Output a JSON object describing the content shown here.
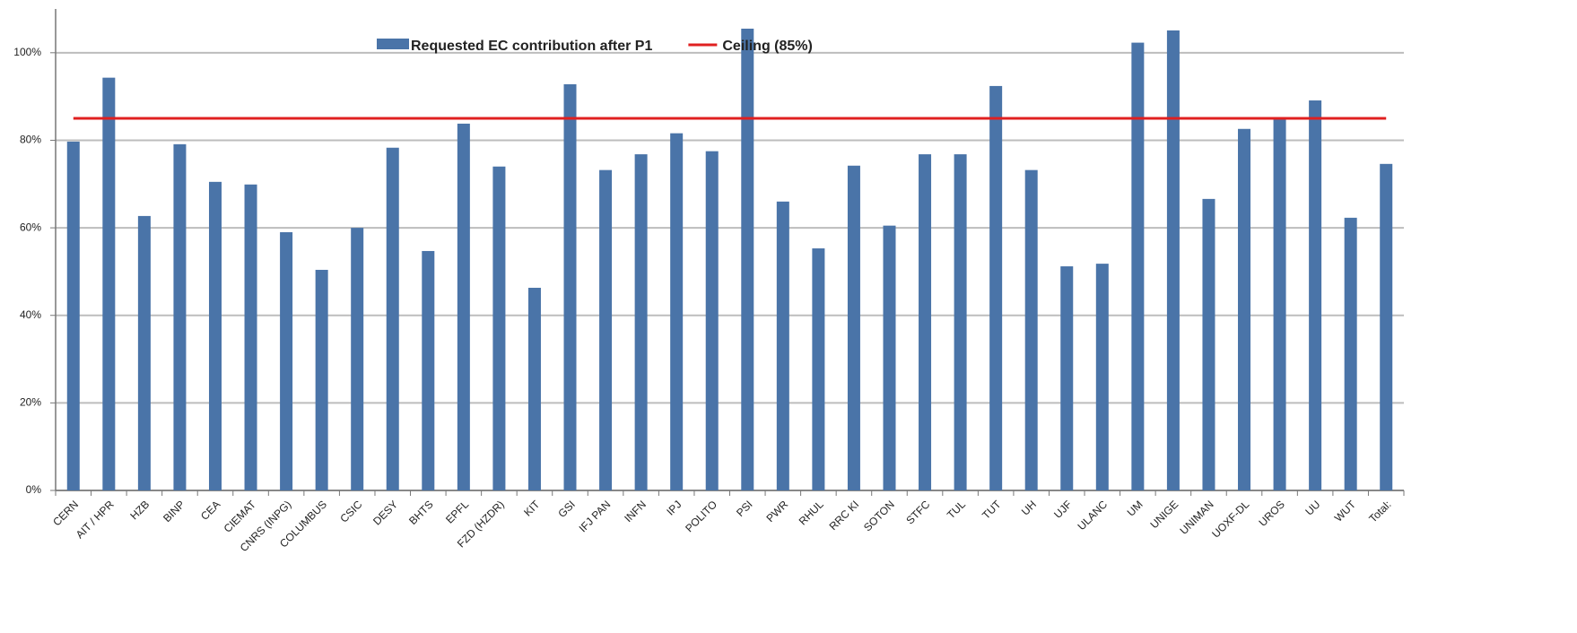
{
  "chart_data": {
    "type": "bar",
    "categories": [
      "CERN",
      "AIT / HPR",
      "HZB",
      "BINP",
      "CEA",
      "CIEMAT",
      "CNRS (INPG)",
      "COLUMBUS",
      "CSIC",
      "DESY",
      "BHTS",
      "EPFL",
      "FZD (HZDR)",
      "KIT",
      "GSI",
      "IFJ PAN",
      "INFN",
      "IPJ",
      "POLITO",
      "PSI",
      "PWR",
      "RHUL",
      "RRC KI",
      "SOTON",
      "STFC",
      "TUL",
      "TUT",
      "UH",
      "UJF",
      "ULANC",
      "UM",
      "UNIGE",
      "UNIMAN",
      "UOXF-DL",
      "UROS",
      "UU",
      "WUT",
      "Total:"
    ],
    "series": [
      {
        "name": "Requested EC contribution after P1",
        "color": "#4a74a8",
        "type": "bar",
        "values": [
          79.7,
          94.3,
          62.7,
          79.1,
          70.5,
          69.9,
          59,
          50.4,
          60,
          78.3,
          54.7,
          83.8,
          74,
          46.3,
          92.8,
          73.2,
          76.8,
          81.6,
          77.5,
          105.5,
          66,
          55.3,
          74.2,
          60.5,
          76.8,
          76.8,
          92.4,
          73.2,
          51.2,
          51.8,
          102.3,
          105.1,
          66.6,
          82.6,
          85.2,
          89.1,
          62.3,
          74.6
        ]
      },
      {
        "name": "Ceiling (85%)",
        "color": "#e02020",
        "type": "line",
        "values": [
          85,
          85,
          85,
          85,
          85,
          85,
          85,
          85,
          85,
          85,
          85,
          85,
          85,
          85,
          85,
          85,
          85,
          85,
          85,
          85,
          85,
          85,
          85,
          85,
          85,
          85,
          85,
          85,
          85,
          85,
          85,
          85,
          85,
          85,
          85,
          85,
          85,
          85
        ]
      }
    ],
    "ylim": [
      0,
      110
    ],
    "yticks": [
      {
        "value": 0,
        "label": "0%"
      },
      {
        "value": 20,
        "label": "20%"
      },
      {
        "value": 40,
        "label": "40%"
      },
      {
        "value": 60,
        "label": "60%"
      },
      {
        "value": 80,
        "label": "80%"
      },
      {
        "value": 100,
        "label": "100%"
      }
    ],
    "grid": true,
    "legend": "top"
  }
}
